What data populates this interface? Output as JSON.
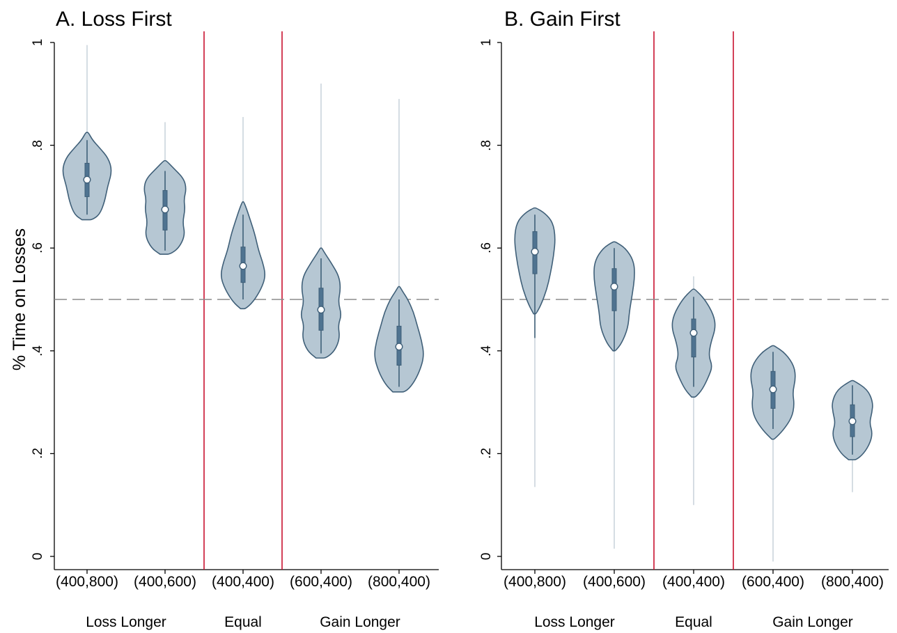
{
  "chart_data": [
    {
      "type": "violin",
      "title": "A. Loss First",
      "ylabel": "% Time on Losses",
      "ylim": [
        0,
        1
      ],
      "yticks": [
        0,
        0.2,
        0.4,
        0.6,
        0.8,
        1
      ],
      "ytick_labels": [
        "0",
        ".2",
        ".4",
        ".6",
        ".8",
        "1"
      ],
      "reference_line": 0.5,
      "categories": [
        "(400,800)",
        "(400,600)",
        "(400,400)",
        "(600,400)",
        "(800,400)"
      ],
      "groups": [
        {
          "label": "Loss Longer",
          "categories": [
            0,
            1
          ]
        },
        {
          "label": "Equal",
          "categories": [
            2
          ]
        },
        {
          "label": "Gain Longer",
          "categories": [
            3,
            4
          ]
        }
      ],
      "violins": [
        {
          "median": 0.733,
          "q1": 0.7,
          "q3": 0.765,
          "whisker_low": 0.665,
          "whisker_high": 0.81,
          "min": 0.655,
          "max": 0.825,
          "tail_high": 0.995,
          "profile": [
            [
              0.655,
              0.2
            ],
            [
              0.665,
              0.5
            ],
            [
              0.69,
              0.7
            ],
            [
              0.72,
              0.82
            ],
            [
              0.75,
              1.0
            ],
            [
              0.775,
              0.85
            ],
            [
              0.795,
              0.5
            ],
            [
              0.81,
              0.22
            ],
            [
              0.825,
              0.05
            ]
          ]
        },
        {
          "median": 0.675,
          "q1": 0.635,
          "q3": 0.712,
          "whisker_low": 0.595,
          "whisker_high": 0.75,
          "min": 0.588,
          "max": 0.77,
          "tail_high": 0.845,
          "profile": [
            [
              0.588,
              0.2
            ],
            [
              0.6,
              0.55
            ],
            [
              0.625,
              0.8
            ],
            [
              0.65,
              0.7
            ],
            [
              0.675,
              0.8
            ],
            [
              0.695,
              0.75
            ],
            [
              0.715,
              0.85
            ],
            [
              0.735,
              0.75
            ],
            [
              0.755,
              0.35
            ],
            [
              0.77,
              0.05
            ]
          ]
        },
        {
          "median": 0.565,
          "q1": 0.533,
          "q3": 0.602,
          "whisker_low": 0.5,
          "whisker_high": 0.665,
          "min": 0.482,
          "max": 0.69,
          "tail_high": 0.855,
          "profile": [
            [
              0.482,
              0.1
            ],
            [
              0.495,
              0.4
            ],
            [
              0.52,
              0.72
            ],
            [
              0.545,
              0.9
            ],
            [
              0.57,
              0.8
            ],
            [
              0.595,
              0.62
            ],
            [
              0.625,
              0.48
            ],
            [
              0.65,
              0.32
            ],
            [
              0.675,
              0.15
            ],
            [
              0.69,
              0.03
            ]
          ]
        },
        {
          "median": 0.48,
          "q1": 0.44,
          "q3": 0.522,
          "whisker_low": 0.395,
          "whisker_high": 0.58,
          "min": 0.386,
          "max": 0.6,
          "tail_high": 0.92,
          "profile": [
            [
              0.386,
              0.2
            ],
            [
              0.4,
              0.55
            ],
            [
              0.425,
              0.75
            ],
            [
              0.45,
              0.68
            ],
            [
              0.47,
              0.82
            ],
            [
              0.495,
              0.68
            ],
            [
              0.52,
              0.78
            ],
            [
              0.545,
              0.72
            ],
            [
              0.57,
              0.42
            ],
            [
              0.59,
              0.15
            ],
            [
              0.6,
              0.03
            ]
          ]
        },
        {
          "median": 0.408,
          "q1": 0.372,
          "q3": 0.448,
          "whisker_low": 0.33,
          "whisker_high": 0.5,
          "min": 0.32,
          "max": 0.525,
          "tail_high": 0.89,
          "profile": [
            [
              0.32,
              0.25
            ],
            [
              0.335,
              0.55
            ],
            [
              0.36,
              0.82
            ],
            [
              0.39,
              1.0
            ],
            [
              0.42,
              0.9
            ],
            [
              0.45,
              0.72
            ],
            [
              0.475,
              0.58
            ],
            [
              0.5,
              0.35
            ],
            [
              0.515,
              0.15
            ],
            [
              0.525,
              0.03
            ]
          ]
        }
      ]
    },
    {
      "type": "violin",
      "title": "B. Gain First",
      "ylabel": "",
      "ylim": [
        0,
        1
      ],
      "yticks": [
        0,
        0.2,
        0.4,
        0.6,
        0.8,
        1
      ],
      "ytick_labels": [
        "0",
        ".2",
        ".4",
        ".6",
        ".8",
        "1"
      ],
      "reference_line": 0.5,
      "categories": [
        "(400,800)",
        "(400,600)",
        "(400,400)",
        "(600,400)",
        "(800,400)"
      ],
      "groups": [
        {
          "label": "Loss Longer",
          "categories": [
            0,
            1
          ]
        },
        {
          "label": "Equal",
          "categories": [
            2
          ]
        },
        {
          "label": "Gain Longer",
          "categories": [
            3,
            4
          ]
        }
      ],
      "violins": [
        {
          "median": 0.593,
          "q1": 0.55,
          "q3": 0.632,
          "whisker_low": 0.425,
          "whisker_high": 0.665,
          "min": 0.472,
          "max": 0.678,
          "tail_low": 0.135,
          "profile": [
            [
              0.472,
              0.05
            ],
            [
              0.49,
              0.25
            ],
            [
              0.52,
              0.48
            ],
            [
              0.55,
              0.62
            ],
            [
              0.585,
              0.75
            ],
            [
              0.62,
              0.82
            ],
            [
              0.65,
              0.72
            ],
            [
              0.668,
              0.4
            ],
            [
              0.678,
              0.05
            ]
          ]
        },
        {
          "median": 0.525,
          "q1": 0.478,
          "q3": 0.56,
          "whisker_low": 0.4,
          "whisker_high": 0.6,
          "min": 0.4,
          "max": 0.612,
          "tail_low": 0.015,
          "profile": [
            [
              0.4,
              0.05
            ],
            [
              0.415,
              0.3
            ],
            [
              0.445,
              0.55
            ],
            [
              0.475,
              0.6
            ],
            [
              0.51,
              0.72
            ],
            [
              0.545,
              0.82
            ],
            [
              0.575,
              0.78
            ],
            [
              0.6,
              0.45
            ],
            [
              0.612,
              0.05
            ]
          ]
        },
        {
          "median": 0.435,
          "q1": 0.388,
          "q3": 0.462,
          "whisker_low": 0.33,
          "whisker_high": 0.505,
          "min": 0.31,
          "max": 0.52,
          "tail_low": 0.1,
          "tail_high": 0.545,
          "profile": [
            [
              0.31,
              0.08
            ],
            [
              0.325,
              0.35
            ],
            [
              0.35,
              0.6
            ],
            [
              0.37,
              0.75
            ],
            [
              0.39,
              0.6
            ],
            [
              0.415,
              0.68
            ],
            [
              0.445,
              0.88
            ],
            [
              0.47,
              0.8
            ],
            [
              0.5,
              0.45
            ],
            [
              0.52,
              0.05
            ]
          ]
        },
        {
          "median": 0.325,
          "q1": 0.288,
          "q3": 0.36,
          "whisker_low": 0.248,
          "whisker_high": 0.398,
          "min": 0.228,
          "max": 0.41,
          "tail_low": -0.01,
          "profile": [
            [
              0.228,
              0.05
            ],
            [
              0.245,
              0.4
            ],
            [
              0.27,
              0.75
            ],
            [
              0.295,
              0.85
            ],
            [
              0.32,
              0.78
            ],
            [
              0.345,
              0.9
            ],
            [
              0.37,
              0.85
            ],
            [
              0.395,
              0.5
            ],
            [
              0.41,
              0.05
            ]
          ]
        },
        {
          "median": 0.263,
          "q1": 0.233,
          "q3": 0.295,
          "whisker_low": 0.198,
          "whisker_high": 0.333,
          "min": 0.188,
          "max": 0.342,
          "tail_low": 0.125,
          "profile": [
            [
              0.188,
              0.15
            ],
            [
              0.2,
              0.45
            ],
            [
              0.22,
              0.7
            ],
            [
              0.24,
              0.8
            ],
            [
              0.26,
              0.68
            ],
            [
              0.28,
              0.78
            ],
            [
              0.3,
              0.82
            ],
            [
              0.325,
              0.6
            ],
            [
              0.342,
              0.05
            ]
          ]
        }
      ]
    }
  ]
}
